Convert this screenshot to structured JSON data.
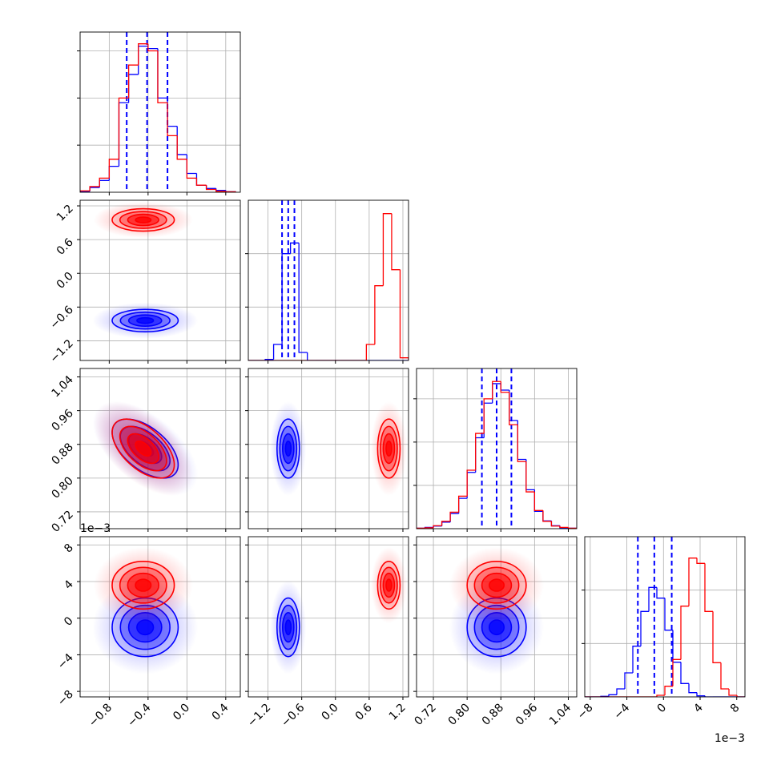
{
  "chart_data": {
    "type": "corner",
    "contour_levels": [
      0.5,
      1,
      1.5,
      2
    ],
    "grid": true,
    "parameters": [
      {
        "lim": [
          -1.1,
          0.55
        ],
        "ticks": [
          {
            "value": -0.8,
            "label": "−0.8"
          },
          {
            "value": -0.4,
            "label": "−0.4"
          },
          {
            "value": 0,
            "label": "0.0"
          },
          0.4
        ],
        "bins": [
          -1.1,
          -1.0,
          -0.9,
          -0.8,
          -0.7,
          -0.6,
          -0.5,
          -0.4,
          -0.3,
          -0.2,
          -0.1,
          0.0,
          0.1,
          0.2,
          0.3,
          0.4,
          0.5
        ],
        "hist_ylim": [
          0,
          3.4
        ],
        "hist_yticks": [
          1,
          2,
          3
        ]
      },
      {
        "lim": [
          -1.55,
          1.3
        ],
        "ticks": [
          {
            "value": -1.2,
            "label": "−1.2"
          },
          {
            "value": -0.6,
            "label": "−0.6"
          },
          {
            "value": 0,
            "label": "0.0"
          },
          0.6,
          1.2
        ],
        "bins": [
          -1.55,
          -1.4,
          -1.25,
          -1.1,
          -0.95,
          -0.8,
          -0.65,
          -0.5,
          -0.35,
          -0.2,
          -0.05,
          0.1,
          0.25,
          0.4,
          0.55,
          0.7,
          0.85,
          1.0,
          1.15,
          1.3
        ],
        "hist_ylim": [
          0,
          3.0
        ],
        "hist_yticks": [
          1,
          2
        ]
      },
      {
        "lim": [
          0.68,
          1.06
        ],
        "ticks": [
          0.72,
          {
            "value": 0.8,
            "label": "0.80"
          },
          0.88,
          0.96,
          1.04
        ],
        "bins": [
          0.68,
          0.7,
          0.72,
          0.74,
          0.76,
          0.78,
          0.8,
          0.82,
          0.84,
          0.86,
          0.88,
          0.9,
          0.92,
          0.94,
          0.96,
          0.98,
          1.0,
          1.02,
          1.04,
          1.06
        ],
        "hist_ylim": [
          0,
          3.7
        ],
        "hist_yticks": [
          1,
          2,
          3
        ]
      },
      {
        "lim": [
          -8.6,
          8.9
        ],
        "ticks": [
          {
            "value": -8,
            "label": "−8"
          },
          {
            "value": -4,
            "label": "−4"
          },
          0,
          4,
          8
        ],
        "offset_label": "1e−3",
        "bins": [
          -8.6,
          -7.725,
          -6.85,
          -5.975,
          -5.1,
          -4.225,
          -3.35,
          -2.475,
          -1.6,
          -0.725,
          0.15,
          1.025,
          1.9,
          2.775,
          3.65,
          4.525,
          5.4,
          6.275,
          7.15,
          8.025,
          8.9
        ],
        "hist_ylim": [
          0,
          3.0
        ],
        "hist_yticks": [
          1,
          2
        ]
      }
    ],
    "series": [
      {
        "color": "#0000ff",
        "mean": [
          -0.43,
          -0.84,
          0.87,
          -1.0
        ],
        "sigma": [
          0.17,
          0.1,
          0.035,
          1.6
        ],
        "correlations": [
          [
            0,
            2,
            -0.55
          ]
        ],
        "quantiles": [
          [
            -0.62,
            -0.41,
            -0.2
          ],
          [
            -0.95,
            -0.84,
            -0.73
          ],
          [
            0.835,
            0.87,
            0.905
          ],
          [
            -2.8,
            -1.0,
            0.9
          ]
        ],
        "histograms": [
          [
            0.02,
            0.1,
            0.25,
            0.55,
            1.9,
            2.5,
            3.1,
            3.05,
            2.0,
            1.4,
            0.8,
            0.4,
            0.15,
            0.08,
            0.04,
            0.01
          ],
          [
            0,
            0,
            0.02,
            0.3,
            2.0,
            2.2,
            0.15,
            0,
            0,
            0,
            0,
            0,
            0,
            0,
            0,
            0,
            0,
            0,
            0
          ],
          [
            0.01,
            0.03,
            0.06,
            0.15,
            0.35,
            0.7,
            1.3,
            2.1,
            2.9,
            3.35,
            3.2,
            2.5,
            1.6,
            0.9,
            0.4,
            0.18,
            0.07,
            0.02,
            0.01
          ],
          [
            0,
            0,
            0.01,
            0.04,
            0.15,
            0.45,
            0.95,
            1.6,
            2.05,
            1.85,
            1.25,
            0.65,
            0.25,
            0.08,
            0.02,
            0,
            0,
            0,
            0,
            0
          ]
        ]
      },
      {
        "color": "#ff0000",
        "mean": [
          -0.45,
          0.95,
          0.87,
          3.6
        ],
        "sigma": [
          0.16,
          0.1,
          0.035,
          1.3
        ],
        "correlations": [
          [
            0,
            2,
            -0.55
          ]
        ],
        "histograms": [
          [
            0.03,
            0.12,
            0.3,
            0.7,
            2.0,
            2.7,
            3.15,
            3.0,
            1.9,
            1.2,
            0.7,
            0.3,
            0.15,
            0.06,
            0.02,
            0.01
          ],
          [
            0,
            0,
            0,
            0,
            0,
            0,
            0,
            0,
            0,
            0,
            0,
            0,
            0,
            0,
            0.3,
            1.4,
            2.75,
            1.7,
            0.05
          ],
          [
            0.01,
            0.02,
            0.07,
            0.17,
            0.38,
            0.75,
            1.35,
            2.2,
            3.0,
            3.4,
            3.15,
            2.4,
            1.55,
            0.85,
            0.42,
            0.17,
            0.06,
            0.03,
            0.01
          ],
          [
            0,
            0,
            0,
            0,
            0,
            0,
            0,
            0,
            0,
            0.03,
            0.2,
            0.7,
            1.7,
            2.6,
            2.5,
            1.6,
            0.64,
            0.15,
            0.03,
            0
          ]
        ]
      }
    ]
  }
}
